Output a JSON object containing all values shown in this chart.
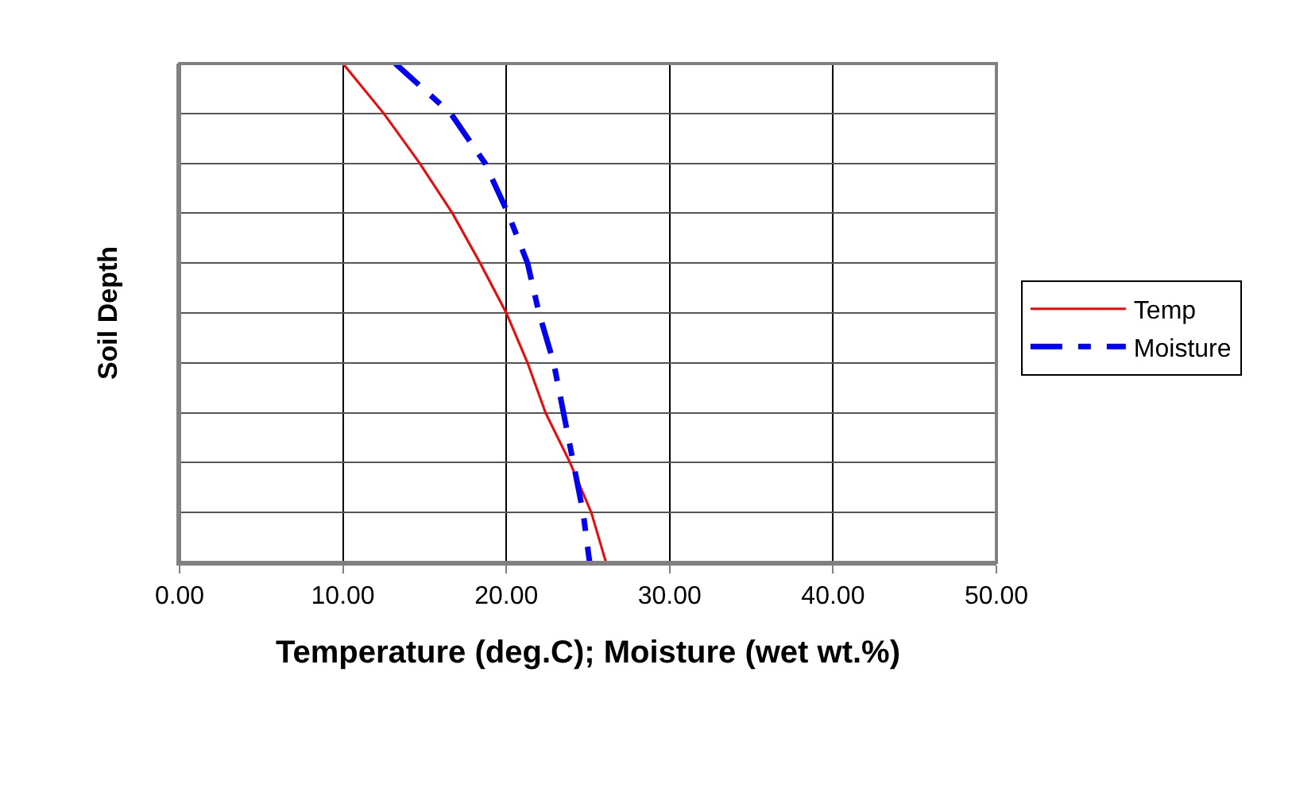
{
  "chart_data": {
    "type": "line",
    "orientation": "horizontal",
    "xlabel": "Temperature (deg.C); Moisture (wet wt.%)",
    "ylabel": "Soil Depth",
    "categories": [
      null,
      null,
      null,
      null,
      null,
      null,
      null,
      null,
      null,
      null,
      null
    ],
    "xlim": [
      0,
      50
    ],
    "xticks": [
      {
        "value": 0,
        "label": "0.00"
      },
      {
        "value": 10,
        "label": "10.00"
      },
      {
        "value": 20,
        "label": "20.00"
      },
      {
        "value": 30,
        "label": "30.00"
      },
      {
        "value": 40,
        "label": "40.00"
      },
      {
        "value": 50,
        "label": "50.00"
      }
    ],
    "grid": true,
    "legend": "right",
    "tick_labels": "x",
    "series": [
      {
        "name": "Temp",
        "color": "#ff0000",
        "line_style": "solid",
        "values": [
          10.0,
          12.5,
          14.7,
          16.7,
          18.4,
          20.0,
          21.3,
          22.4,
          23.9,
          25.2,
          26.1
        ]
      },
      {
        "name": "Moisture",
        "color": "#0000ff",
        "line_style": "dashed",
        "values": [
          13.2,
          16.6,
          18.7,
          20.1,
          21.3,
          22.0,
          22.9,
          23.5,
          24.1,
          24.7,
          25.1
        ]
      }
    ]
  }
}
